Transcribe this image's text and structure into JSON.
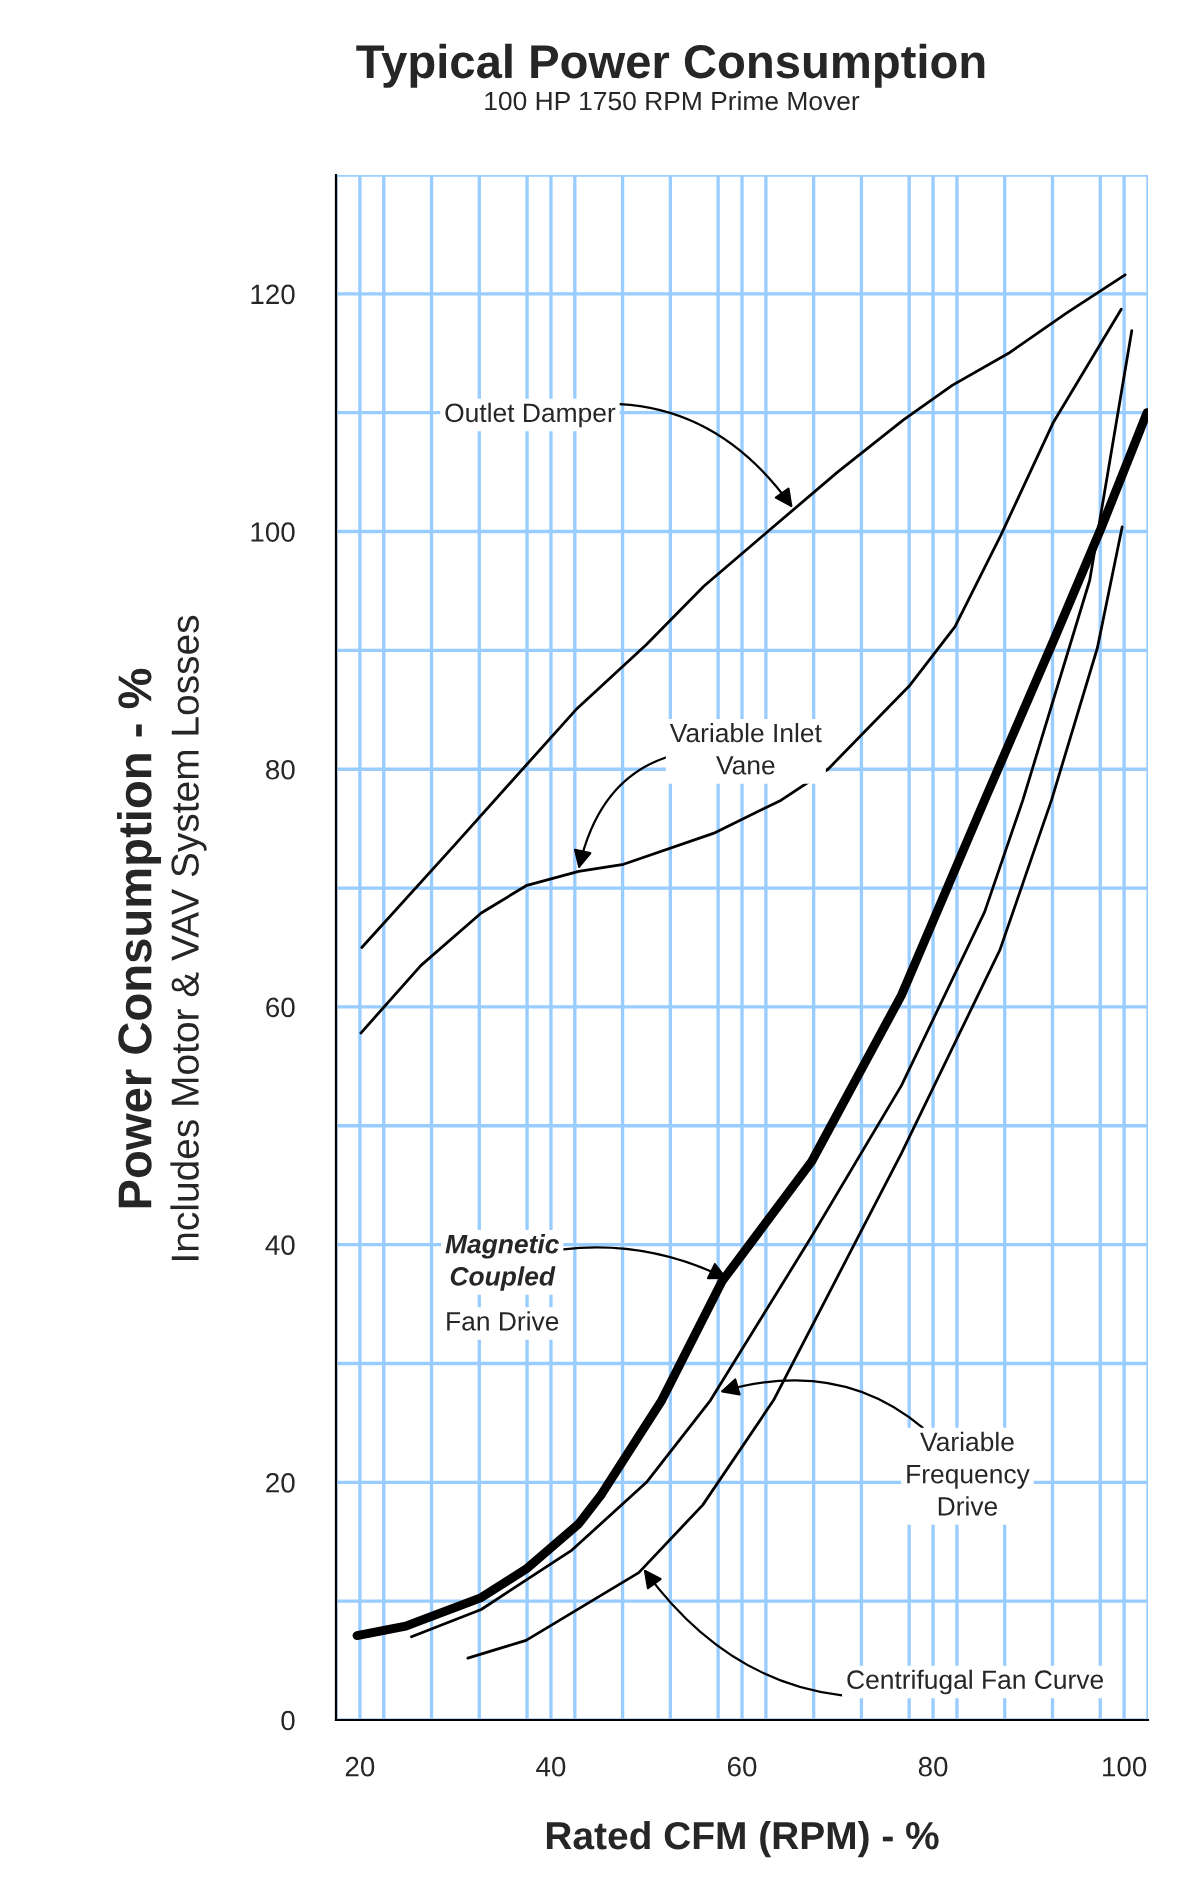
{
  "chart_data": {
    "type": "line",
    "title": "Typical Power Consumption",
    "subtitle": "100 HP 1750 RPM Prime Mover",
    "xlabel": "Rated CFM (RPM) - %",
    "ylabel": "Power Consumption - %\nIncludes Motor & VAV System Losses",
    "xlim": [
      17.5,
      102.5
    ],
    "ylim": [
      0,
      130
    ],
    "xticks": [
      {
        "value": 17.5,
        "label": null
      },
      20,
      {
        "value": 22.5,
        "label": null
      },
      {
        "value": 27.5,
        "label": null
      },
      {
        "value": 32.5,
        "label": null
      },
      {
        "value": 37.5,
        "label": null
      },
      40,
      {
        "value": 42.5,
        "label": null
      },
      {
        "value": 47.5,
        "label": null
      },
      {
        "value": 52.5,
        "label": null
      },
      {
        "value": 57.5,
        "label": null
      },
      60,
      {
        "value": 62.5,
        "label": null
      },
      {
        "value": 67.5,
        "label": null
      },
      {
        "value": 72.5,
        "label": null
      },
      {
        "value": 77.5,
        "label": null
      },
      80,
      {
        "value": 82.5,
        "label": null
      },
      {
        "value": 87.5,
        "label": null
      },
      {
        "value": 92.5,
        "label": null
      },
      {
        "value": 97.5,
        "label": null
      },
      100,
      {
        "value": 102.5,
        "label": null
      }
    ],
    "yticks": [
      0,
      {
        "value": 10,
        "label": null
      },
      20,
      {
        "value": 30,
        "label": null
      },
      40,
      {
        "value": 50,
        "label": null
      },
      60,
      {
        "value": 70,
        "label": null
      },
      80,
      {
        "value": 90,
        "label": null
      },
      100,
      {
        "value": 110,
        "label": null
      },
      120,
      {
        "value": 130,
        "label": null
      }
    ],
    "grid": true,
    "legend": false,
    "marker": "none",
    "line_style": "solid",
    "series": [
      {
        "color": "#000000",
        "x": [
          20.2,
          30,
          42.6,
          50,
          56,
          62.7,
          70,
          76.9,
          82,
          87.9,
          94,
          100.1
        ],
        "values": [
          65,
          73.7,
          85,
          90.5,
          95.4,
          100,
          105,
          109.4,
          112.3,
          115,
          118.4,
          121.6
        ]
      },
      {
        "color": "#000000",
        "x": [
          20.1,
          26.4,
          32.7,
          37.4,
          42.9,
          47.6,
          57,
          64.1,
          69,
          77.5,
          82.3,
          87.1,
          92.6,
          99.7
        ],
        "values": [
          57.8,
          63.5,
          67.9,
          70.2,
          71.4,
          72,
          74.6,
          77.4,
          80,
          87,
          92,
          99.7,
          109.2,
          118.7
        ]
      },
      {
        "color": "#000000",
        "x": [
          19.7,
          24.8,
          32.7,
          37.4,
          42.9,
          45.3,
          51.6,
          57.9,
          67.3,
          76.7,
          85.4,
          92.6,
          97.6,
          102.4
        ],
        "values": [
          7.1,
          7.9,
          10.3,
          12.7,
          16.5,
          19,
          26.9,
          36.9,
          47,
          61,
          77.4,
          90.8,
          100.3,
          110
        ]
      },
      {
        "color": "#000000",
        "x": [
          25.4,
          32.7,
          42.2,
          50,
          56.7,
          67.3,
          76.7,
          85.4,
          89.4,
          96.4,
          100.8
        ],
        "values": [
          7,
          9.3,
          14.3,
          20,
          26.9,
          40.7,
          53.4,
          68,
          77.4,
          95.9,
          116.9
        ]
      },
      {
        "color": "#000000",
        "x": [
          31.3,
          37.4,
          49.2,
          55.9,
          63.3,
          76.7,
          87,
          92.4,
          97.2,
          99.8
        ],
        "values": [
          5.2,
          6.7,
          12.4,
          18.1,
          26.9,
          47.7,
          64.8,
          77.4,
          90.2,
          100.4
        ]
      }
    ],
    "annotations": [
      {
        "text": "Outlet Damper",
        "x": 65.3,
        "y": 102
      },
      {
        "text": "Variable Inlet\nVane",
        "x": 42.9,
        "y": 71.6
      },
      {
        "text": "Magnetic\nCoupled\nFan Drive",
        "x": 58.5,
        "y": 37.1
      },
      {
        "text": "Variable\nFrequency\nDrive",
        "x": 57.7,
        "y": 27.6
      },
      {
        "text": "Centrifugal Fan Curve",
        "x": 49.7,
        "y": 12.7
      }
    ]
  }
}
